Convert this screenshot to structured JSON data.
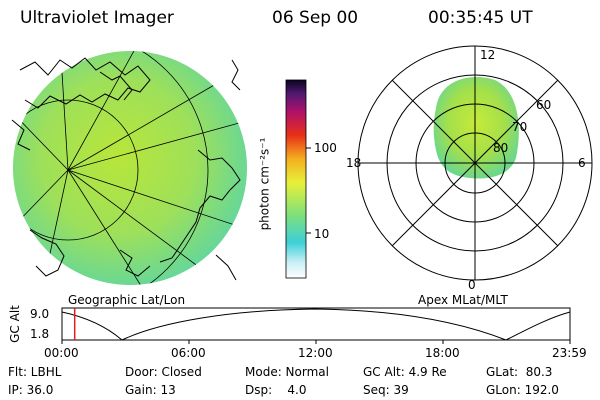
{
  "header": {
    "instrument": "Ultraviolet Imager",
    "date": "06 Sep 00",
    "time": "00:35:45 UT"
  },
  "colorbar": {
    "unit_label": "photon cm⁻²s⁻¹",
    "ticks": [
      "100",
      "10"
    ]
  },
  "geo_panel": {
    "label": "Geographic Lat/Lon"
  },
  "polar_panel": {
    "label": "Apex MLat/MLT",
    "mlt_labels": {
      "top": "12",
      "left": "18",
      "right": "6",
      "bottom": "0"
    },
    "lat_labels": [
      "60",
      "70",
      "80"
    ]
  },
  "timeline": {
    "ylabel": "GC Alt",
    "y_ticks": [
      "9.0",
      "1.8"
    ],
    "x_ticks": [
      "00:00",
      "06:00",
      "12:00",
      "18:00",
      "23:59"
    ],
    "current_marker_hour": 0.6
  },
  "info": {
    "row1": {
      "flt": "Flt: LBHL",
      "door": "Door: Closed",
      "mode": "Mode: Normal",
      "gcalt": "GC Alt: 4.9 Re",
      "glat": "GLat:  80.3"
    },
    "row2": {
      "ip": "IP: 36.0",
      "gain": "Gain: 13",
      "dsp": "Dsp:    4.0",
      "seq": "Seq: 39",
      "glon": "GLon: 192.0"
    }
  }
}
